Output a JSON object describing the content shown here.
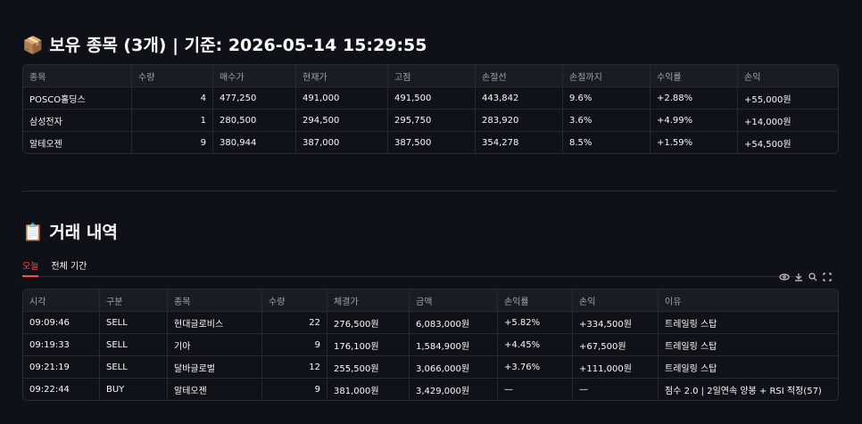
{
  "holdings": {
    "title": "📦 보유 종목 (3개) | 기준: 2026-05-14 15:29:55",
    "columns": [
      "종목",
      "수량",
      "매수가",
      "현재가",
      "고점",
      "손절선",
      "손절까지",
      "수익률",
      "손익"
    ],
    "rows": [
      [
        "POSCO홀딩스",
        "4",
        "477,250",
        "491,000",
        "491,500",
        "443,842",
        "9.6%",
        "+2.88%",
        "+55,000원"
      ],
      [
        "삼성전자",
        "1",
        "280,500",
        "294,500",
        "295,750",
        "283,920",
        "3.6%",
        "+4.99%",
        "+14,000원"
      ],
      [
        "알테오젠",
        "9",
        "380,944",
        "387,000",
        "387,500",
        "354,278",
        "8.5%",
        "+1.59%",
        "+54,500원"
      ]
    ]
  },
  "trades": {
    "title": "📋 거래 내역",
    "tabs": [
      "오늘",
      "전체 기간"
    ],
    "columns": [
      "시각",
      "구분",
      "종목",
      "수량",
      "체결가",
      "금액",
      "손익률",
      "손익",
      "이유"
    ],
    "rows": [
      [
        "09:09:46",
        "SELL",
        "현대글로비스",
        "22",
        "276,500원",
        "6,083,000원",
        "+5.82%",
        "+334,500원",
        "트레일링 스탑"
      ],
      [
        "09:19:33",
        "SELL",
        "기아",
        "9",
        "176,100원",
        "1,584,900원",
        "+4.45%",
        "+67,500원",
        "트레일링 스탑"
      ],
      [
        "09:21:19",
        "SELL",
        "달바글로벌",
        "12",
        "255,500원",
        "3,066,000원",
        "+3.76%",
        "+111,000원",
        "트레일링 스탑"
      ],
      [
        "09:22:44",
        "BUY",
        "알테오젠",
        "9",
        "381,000원",
        "3,429,000원",
        "—",
        "—",
        "점수 2.0 | 2일연속 양봉 + RSI 적정(57)"
      ]
    ]
  }
}
